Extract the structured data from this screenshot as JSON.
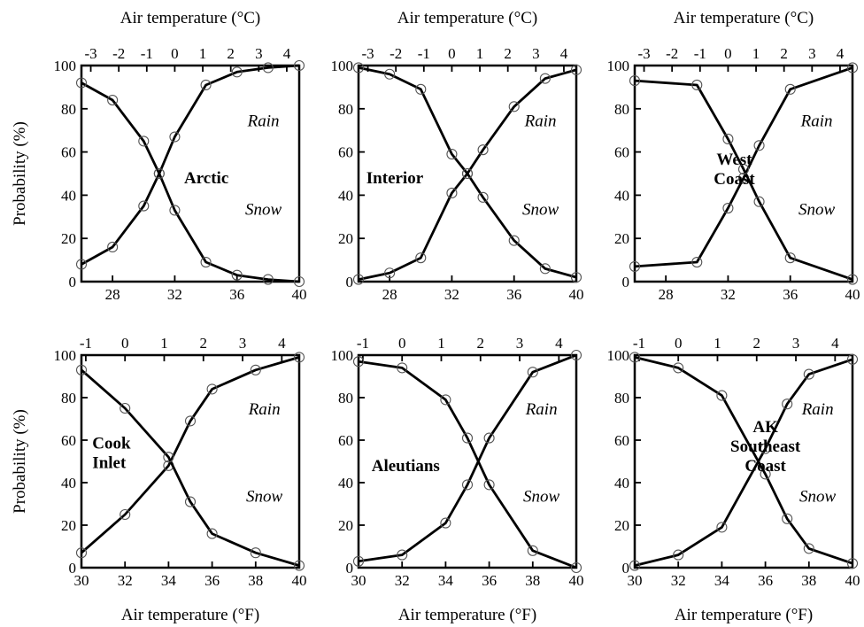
{
  "figure": {
    "top_axis_title": "Air temperature (°C)",
    "bottom_axis_title": "Air temperature (°F)",
    "left_axis_title": "Probability (%)"
  },
  "chart_data": [
    {
      "type": "line",
      "region": [
        "Arctic"
      ],
      "label_position": "center-right",
      "xlabel": "",
      "x2label": "Air temperature (°C)",
      "ylabel": "Probability (%)",
      "xlim": [
        26,
        40
      ],
      "ylim": [
        0,
        100
      ],
      "xticks": [
        28,
        32,
        36,
        40
      ],
      "x2ticks": [
        -3,
        -2,
        -1,
        0,
        1,
        2,
        3,
        4
      ],
      "yticks": [
        0,
        20,
        40,
        60,
        80,
        100
      ],
      "series": [
        {
          "name": "Rain",
          "x": [
            26,
            28,
            30,
            31,
            32,
            34,
            36,
            38,
            40
          ],
          "y": [
            8,
            16,
            35,
            50,
            67,
            91,
            97,
            99,
            100
          ]
        },
        {
          "name": "Snow",
          "x": [
            26,
            28,
            30,
            31,
            32,
            34,
            36,
            38,
            40
          ],
          "y": [
            92,
            84,
            65,
            50,
            33,
            9,
            3,
            1,
            0
          ]
        }
      ],
      "rain_label_pos": [
        37.7,
        72
      ],
      "snow_label_pos": [
        37.7,
        31
      ]
    },
    {
      "type": "line",
      "region": [
        "Interior"
      ],
      "label_position": "center-left",
      "xlabel": "",
      "x2label": "Air temperature (°C)",
      "ylabel": "",
      "xlim": [
        26,
        40
      ],
      "ylim": [
        0,
        100
      ],
      "xticks": [
        28,
        32,
        36,
        40
      ],
      "x2ticks": [
        -3,
        -2,
        -1,
        0,
        1,
        2,
        3,
        4
      ],
      "yticks": [
        0,
        20,
        40,
        60,
        80,
        100
      ],
      "series": [
        {
          "name": "Rain",
          "x": [
            26,
            28,
            30,
            32,
            33,
            34,
            36,
            38,
            40
          ],
          "y": [
            1,
            4,
            11,
            41,
            50,
            61,
            81,
            94,
            98
          ]
        },
        {
          "name": "Snow",
          "x": [
            26,
            28,
            30,
            32,
            33,
            34,
            36,
            38,
            40
          ],
          "y": [
            99,
            96,
            89,
            59,
            50,
            39,
            19,
            6,
            2
          ]
        }
      ],
      "rain_label_pos": [
        37.7,
        72
      ],
      "snow_label_pos": [
        37.7,
        31
      ]
    },
    {
      "type": "line",
      "region": [
        "West",
        "Coast"
      ],
      "label_position": "center-left",
      "xlabel": "",
      "x2label": "Air temperature (°C)",
      "ylabel": "",
      "xlim": [
        26,
        40
      ],
      "ylim": [
        0,
        100
      ],
      "xticks": [
        28,
        32,
        36,
        40
      ],
      "x2ticks": [
        -3,
        -2,
        -1,
        0,
        1,
        2,
        3,
        4
      ],
      "yticks": [
        0,
        20,
        40,
        60,
        80,
        100
      ],
      "series": [
        {
          "name": "Rain",
          "x": [
            26,
            30,
            32,
            33,
            34,
            36,
            40
          ],
          "y": [
            7,
            9,
            34,
            48,
            63,
            89,
            99
          ]
        },
        {
          "name": "Snow",
          "x": [
            26,
            30,
            32,
            33,
            34,
            36,
            40
          ],
          "y": [
            93,
            91,
            66,
            52,
            37,
            11,
            1
          ]
        }
      ],
      "rain_label_pos": [
        37.7,
        72
      ],
      "snow_label_pos": [
        37.7,
        31
      ]
    },
    {
      "type": "line",
      "region": [
        "Cook",
        "Inlet"
      ],
      "label_position": "center-left",
      "xlabel": "Air temperature (°F)",
      "x2label": "",
      "ylabel": "Probability (%)",
      "xlim": [
        30,
        40
      ],
      "ylim": [
        0,
        100
      ],
      "xticks": [
        30,
        32,
        34,
        36,
        38,
        40
      ],
      "x2ticks": [
        -1,
        0,
        1,
        2,
        3,
        4
      ],
      "yticks": [
        0,
        20,
        40,
        60,
        80,
        100
      ],
      "series": [
        {
          "name": "Rain",
          "x": [
            30,
            32,
            34,
            35,
            36,
            38,
            40
          ],
          "y": [
            7,
            25,
            48,
            69,
            84,
            93,
            99
          ]
        },
        {
          "name": "Snow",
          "x": [
            30,
            32,
            34,
            35,
            36,
            38,
            40
          ],
          "y": [
            93,
            75,
            52,
            31,
            16,
            7,
            1
          ]
        }
      ],
      "rain_label_pos": [
        38.4,
        72
      ],
      "snow_label_pos": [
        38.4,
        31
      ]
    },
    {
      "type": "line",
      "region": [
        "Aleutians"
      ],
      "label_position": "center-left",
      "xlabel": "Air temperature (°F)",
      "x2label": "",
      "ylabel": "",
      "xlim": [
        30,
        40
      ],
      "ylim": [
        0,
        100
      ],
      "xticks": [
        30,
        32,
        34,
        36,
        38,
        40
      ],
      "x2ticks": [
        -1,
        0,
        1,
        2,
        3,
        4
      ],
      "yticks": [
        0,
        20,
        40,
        60,
        80,
        100
      ],
      "series": [
        {
          "name": "Rain",
          "x": [
            30,
            32,
            34,
            35,
            36,
            38,
            40
          ],
          "y": [
            3,
            6,
            21,
            39,
            61,
            92,
            100
          ]
        },
        {
          "name": "Snow",
          "x": [
            30,
            32,
            34,
            35,
            36,
            38,
            40
          ],
          "y": [
            97,
            94,
            79,
            61,
            39,
            8,
            0
          ]
        }
      ],
      "rain_label_pos": [
        38.4,
        72
      ],
      "snow_label_pos": [
        38.4,
        31
      ]
    },
    {
      "type": "line",
      "region": [
        "AK",
        "Southeast",
        "Coast"
      ],
      "label_position": "center-left",
      "xlabel": "Air temperature (°F)",
      "x2label": "",
      "ylabel": "",
      "xlim": [
        30,
        40
      ],
      "ylim": [
        0,
        100
      ],
      "xticks": [
        30,
        32,
        34,
        36,
        38,
        40
      ],
      "x2ticks": [
        -1,
        0,
        1,
        2,
        3,
        4
      ],
      "yticks": [
        0,
        20,
        40,
        60,
        80,
        100
      ],
      "series": [
        {
          "name": "Rain",
          "x": [
            30,
            32,
            34,
            36,
            37,
            38,
            40
          ],
          "y": [
            1,
            6,
            19,
            56,
            77,
            91,
            98
          ]
        },
        {
          "name": "Snow",
          "x": [
            30,
            32,
            34,
            36,
            37,
            38,
            40
          ],
          "y": [
            99,
            94,
            81,
            44,
            23,
            9,
            2
          ]
        }
      ],
      "rain_label_pos": [
        38.4,
        72
      ],
      "snow_label_pos": [
        38.4,
        31
      ]
    }
  ]
}
